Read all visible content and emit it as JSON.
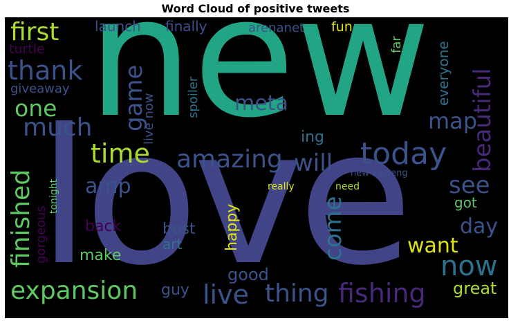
{
  "title": "Word Cloud of positive tweets",
  "palette": {
    "background": "#000000",
    "teal": "#21a585",
    "indigo": "#414487",
    "slate": "#3b528b",
    "ocean": "#2c728e",
    "green": "#5ec962",
    "lime": "#addc30",
    "yellow": "#dfe318",
    "purple": "#482878",
    "darkpurple": "#440154"
  },
  "words": [
    {
      "id": "new",
      "text": "new"
    },
    {
      "id": "love",
      "text": "love"
    },
    {
      "id": "first",
      "text": "first"
    },
    {
      "id": "launch",
      "text": "launch"
    },
    {
      "id": "finally",
      "text": "finally"
    },
    {
      "id": "arenanet",
      "text": "arenanet"
    },
    {
      "id": "fun",
      "text": "fun"
    },
    {
      "id": "turtle",
      "text": "turtle"
    },
    {
      "id": "thank",
      "text": "thank"
    },
    {
      "id": "giveaway",
      "text": "giveaway"
    },
    {
      "id": "one",
      "text": "one"
    },
    {
      "id": "much",
      "text": "much"
    },
    {
      "id": "game",
      "text": "game"
    },
    {
      "id": "live-now",
      "text": "live now"
    },
    {
      "id": "spoiler",
      "text": "spoiler"
    },
    {
      "id": "meta",
      "text": "meta"
    },
    {
      "id": "far",
      "text": "far"
    },
    {
      "id": "everyone",
      "text": "everyone"
    },
    {
      "id": "beautiful",
      "text": "beautiful"
    },
    {
      "id": "map",
      "text": "map"
    },
    {
      "id": "ing",
      "text": "ing"
    },
    {
      "id": "time",
      "text": "time"
    },
    {
      "id": "amazing",
      "text": "amazing"
    },
    {
      "id": "will",
      "text": "will"
    },
    {
      "id": "today",
      "text": "today"
    },
    {
      "id": "finished",
      "text": "finished"
    },
    {
      "id": "gorgeous",
      "text": "gorgeous"
    },
    {
      "id": "tonight",
      "text": "tonight"
    },
    {
      "id": "amp",
      "text": "amp"
    },
    {
      "id": "see",
      "text": "see"
    },
    {
      "id": "new-kaineng",
      "text": "new kaineng"
    },
    {
      "id": "really",
      "text": "really"
    },
    {
      "id": "need",
      "text": "need"
    },
    {
      "id": "got",
      "text": "got"
    },
    {
      "id": "back",
      "text": "back"
    },
    {
      "id": "best",
      "text": "best"
    },
    {
      "id": "art",
      "text": "art"
    },
    {
      "id": "happy",
      "text": "happy"
    },
    {
      "id": "come",
      "text": "come"
    },
    {
      "id": "day",
      "text": "day"
    },
    {
      "id": "want",
      "text": "want"
    },
    {
      "id": "make",
      "text": "make"
    },
    {
      "id": "now",
      "text": "now"
    },
    {
      "id": "good",
      "text": "good"
    },
    {
      "id": "expansion",
      "text": "expansion"
    },
    {
      "id": "guy",
      "text": "guy"
    },
    {
      "id": "live",
      "text": "live"
    },
    {
      "id": "thing",
      "text": "thing"
    },
    {
      "id": "fishing",
      "text": "fishing"
    },
    {
      "id": "great",
      "text": "great"
    }
  ]
}
